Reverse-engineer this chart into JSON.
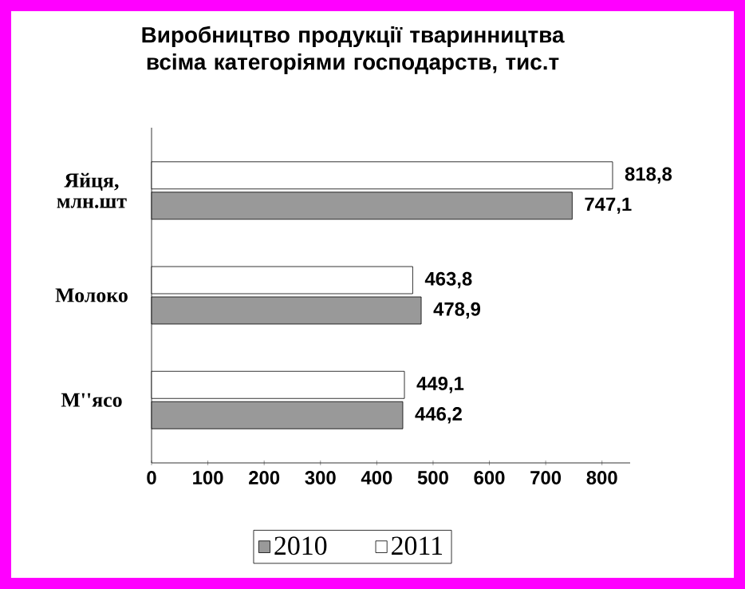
{
  "chart_data": {
    "type": "bar",
    "orientation": "horizontal",
    "title": "Виробництво продукції тваринництва всіма категоріями господарств, тис.т",
    "categories": [
      "Яйця, млн.шт",
      "Молоко",
      "М''ясо"
    ],
    "series": [
      {
        "name": "2010",
        "color": "#999999",
        "values": [
          747.1,
          478.9,
          446.2
        ],
        "value_labels": [
          "747,1",
          "478,9",
          "446,2"
        ]
      },
      {
        "name": "2011",
        "color": "#ffffff",
        "values": [
          818.8,
          463.8,
          449.1
        ],
        "value_labels": [
          "818,8",
          "463,8",
          "449,1"
        ]
      }
    ],
    "xlim": [
      0,
      850
    ],
    "xticks": [
      0,
      100,
      200,
      300,
      400,
      500,
      600,
      700,
      800
    ],
    "legend": "bottom",
    "grid": false
  }
}
